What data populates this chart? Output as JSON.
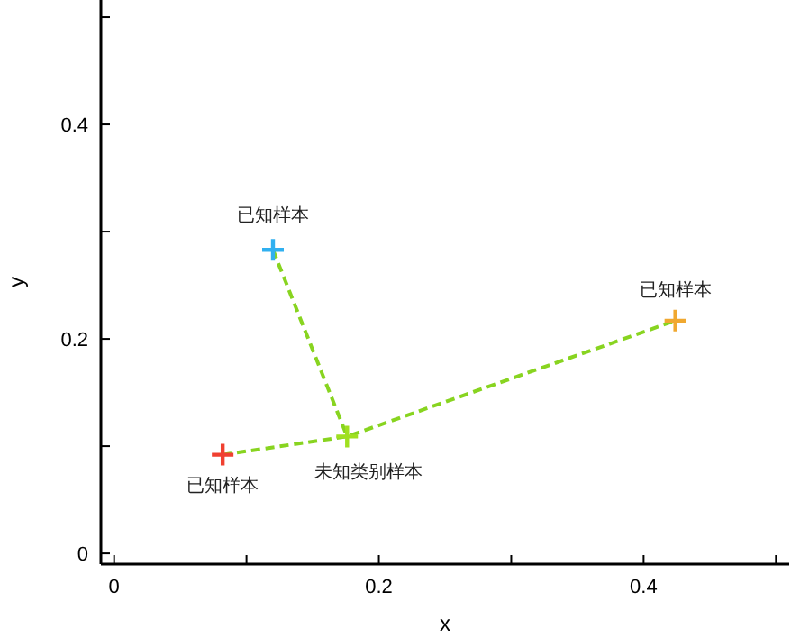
{
  "chart_data": {
    "type": "scatter",
    "xlabel": "x",
    "ylabel": "y",
    "xlim": [
      -0.01,
      0.51
    ],
    "ylim": [
      -0.01,
      0.516
    ],
    "xticks": [
      0,
      {
        "value": 0.1,
        "label": null
      },
      {
        "value": 0.2,
        "label": "0.2"
      },
      {
        "value": 0.3,
        "label": null
      },
      {
        "value": 0.4,
        "label": "0.4"
      },
      {
        "value": 0.5,
        "label": null
      }
    ],
    "yticks": [
      0,
      {
        "value": 0.1,
        "label": null
      },
      {
        "value": 0.2,
        "label": "0.2"
      },
      {
        "value": 0.3,
        "label": null
      },
      {
        "value": 0.4,
        "label": "0.4"
      },
      {
        "value": 0.5,
        "label": null
      }
    ],
    "grid": false,
    "marker": "cross",
    "series": [
      {
        "type": "line",
        "color": "#88d420",
        "line_style": "dashed",
        "marker": "none",
        "x": [
          0.082,
          0.176,
          0.424
        ],
        "values": [
          0.092,
          0.109,
          0.217
        ]
      },
      {
        "type": "line",
        "color": "#88d420",
        "line_style": "dashed",
        "marker": "none",
        "x": [
          0.12,
          0.176
        ],
        "values": [
          0.283,
          0.109
        ]
      },
      {
        "type": "scatter",
        "x": [
          0.082,
          0.12,
          0.424,
          0.176
        ],
        "values": [
          0.092,
          0.283,
          0.217,
          0.109
        ],
        "colors": [
          "#f04030",
          "#30b0f0",
          "#f0a830",
          "#a0e020"
        ]
      }
    ],
    "annotations": [
      {
        "text": "已知样本",
        "x": 0.082,
        "y": 0.092
      },
      {
        "text": "已知样本",
        "x": 0.12,
        "y": 0.283
      },
      {
        "text": "已知样本",
        "x": 0.424,
        "y": 0.217
      },
      {
        "text": "未知类别样本",
        "x": 0.176,
        "y": 0.109
      }
    ]
  }
}
